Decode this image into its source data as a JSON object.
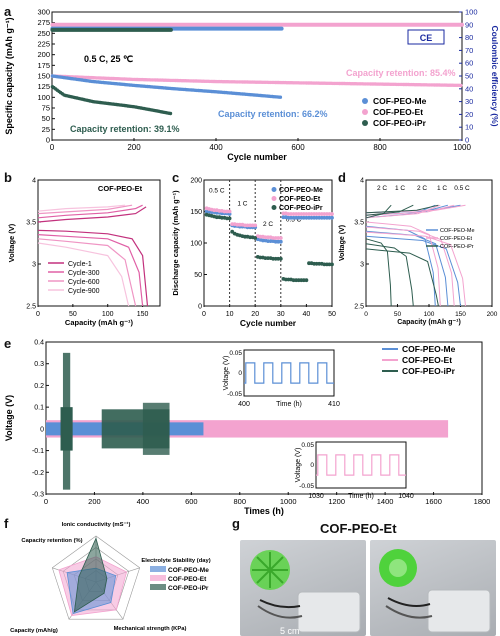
{
  "panel_labels": {
    "a": "a",
    "b": "b",
    "c": "c",
    "d": "d",
    "e": "e",
    "f": "f",
    "g": "g"
  },
  "colors": {
    "me": "#5b8fd6",
    "et": "#f3a3cf",
    "ipr": "#2e5d4f",
    "et_dark": "#c2317d"
  },
  "chart_data": [
    {
      "id": "a",
      "type": "scatter",
      "xlabel": "Cycle number",
      "ylabel": "Specific capacity (mAh g⁻¹)",
      "y2label": "Coulombic efficiency (%)",
      "xlim": [
        0,
        1000
      ],
      "ylim": [
        0,
        300
      ],
      "y2lim": [
        0,
        100
      ],
      "xticks": [
        0,
        200,
        400,
        600,
        800,
        1000
      ],
      "yticks": [
        0,
        25,
        50,
        75,
        100,
        125,
        150,
        175,
        200,
        225,
        250,
        275,
        300
      ],
      "y2ticks": [
        0,
        10,
        20,
        30,
        40,
        50,
        60,
        70,
        80,
        90,
        100
      ],
      "condition": "0.5 C,  25 ℃",
      "ce_tag": "CE",
      "annotations": [
        "Capacity retention: 85.4%",
        "Capacity retention: 66.2%",
        "Capacity retention: 39.1%"
      ],
      "legend_position": "bottom-right",
      "series": [
        {
          "name": "COF-PEO-Me",
          "color_key": "me",
          "capacity": [
            [
              1,
              150
            ],
            [
              100,
              137
            ],
            [
              200,
              128
            ],
            [
              300,
              120
            ],
            [
              400,
              113
            ],
            [
              500,
              105
            ],
            [
              560,
              100
            ]
          ],
          "ce": [
            [
              1,
              87
            ],
            [
              560,
              87
            ]
          ]
        },
        {
          "name": "COF-PEO-Et",
          "color_key": "et",
          "capacity": [
            [
              1,
              150
            ],
            [
              200,
              142
            ],
            [
              400,
              137
            ],
            [
              600,
              134
            ],
            [
              800,
              131
            ],
            [
              1000,
              128
            ]
          ],
          "ce": [
            [
              1,
              90
            ],
            [
              1000,
              90
            ]
          ]
        },
        {
          "name": "COF-PEO-iPr",
          "color_key": "ipr",
          "capacity": [
            [
              1,
              125
            ],
            [
              30,
              105
            ],
            [
              100,
              90
            ],
            [
              200,
              78
            ],
            [
              290,
              62
            ]
          ],
          "ce": [
            [
              1,
              86
            ],
            [
              290,
              86
            ]
          ]
        }
      ]
    },
    {
      "id": "b",
      "type": "line",
      "title": "COF-PEO-Et",
      "xlabel": "Capacity (mAh g⁻¹)",
      "ylabel": "Voltage (V)",
      "xlim": [
        0,
        175
      ],
      "ylim": [
        2.5,
        4.0
      ],
      "xticks": [
        0,
        50,
        100,
        150
      ],
      "yticks": [
        2.5,
        3.0,
        3.5,
        4.0
      ],
      "series": [
        {
          "name": "Cycle-1",
          "color": "#c2317d",
          "charge": [
            [
              0,
              3.5
            ],
            [
              40,
              3.53
            ],
            [
              100,
              3.56
            ],
            [
              140,
              3.6
            ],
            [
              155,
              3.68
            ]
          ],
          "discharge": [
            [
              0,
              3.4
            ],
            [
              40,
              3.39
            ],
            [
              100,
              3.36
            ],
            [
              135,
              3.3
            ],
            [
              150,
              3.1
            ],
            [
              157,
              2.5
            ]
          ]
        },
        {
          "name": "Cycle-300",
          "color": "#e060a6",
          "charge": [
            [
              0,
              3.55
            ],
            [
              40,
              3.58
            ],
            [
              100,
              3.61
            ],
            [
              140,
              3.66
            ],
            [
              150,
              3.7
            ]
          ],
          "discharge": [
            [
              0,
              3.35
            ],
            [
              40,
              3.33
            ],
            [
              100,
              3.3
            ],
            [
              130,
              3.2
            ],
            [
              145,
              2.9
            ],
            [
              150,
              2.5
            ]
          ]
        },
        {
          "name": "Cycle-600",
          "color": "#ef95c4",
          "charge": [
            [
              0,
              3.6
            ],
            [
              40,
              3.62
            ],
            [
              100,
              3.65
            ],
            [
              135,
              3.7
            ]
          ],
          "discharge": [
            [
              0,
              3.3
            ],
            [
              40,
              3.27
            ],
            [
              100,
              3.22
            ],
            [
              125,
              3.05
            ],
            [
              140,
              2.5
            ]
          ]
        },
        {
          "name": "Cycle-900",
          "color": "#f7c3de",
          "charge": [
            [
              0,
              3.63
            ],
            [
              40,
              3.66
            ],
            [
              100,
              3.68
            ],
            [
              125,
              3.7
            ]
          ],
          "discharge": [
            [
              0,
              3.25
            ],
            [
              40,
              3.2
            ],
            [
              100,
              3.1
            ],
            [
              120,
              2.85
            ],
            [
              130,
              2.5
            ]
          ]
        }
      ]
    },
    {
      "id": "c",
      "type": "scatter",
      "xlabel": "Cycle number",
      "ylabel": "Discharge capacity (mAh g⁻¹)",
      "xlim": [
        0,
        50
      ],
      "ylim": [
        0,
        200
      ],
      "xticks": [
        0,
        10,
        20,
        30,
        40,
        50
      ],
      "yticks": [
        0,
        50,
        100,
        150,
        200
      ],
      "rate_labels": [
        "0.5 C",
        "1 C",
        "2 C",
        "0.5 C"
      ],
      "series": [
        {
          "name": "COF-PEO-Me",
          "color_key": "me",
          "values": [
            150,
            150,
            149,
            149,
            148,
            148,
            147,
            147,
            147,
            146,
            128,
            127,
            127,
            126,
            126,
            126,
            125,
            125,
            125,
            125,
            106,
            105,
            104,
            104,
            103,
            103,
            103,
            102,
            102,
            102,
            141,
            141,
            140,
            140,
            140,
            140,
            140,
            140,
            140,
            140,
            140,
            140,
            140,
            140,
            140,
            140,
            140,
            140,
            140,
            140
          ]
        },
        {
          "name": "COF-PEO-Et",
          "color_key": "et",
          "values": [
            155,
            154,
            153,
            152,
            152,
            151,
            151,
            150,
            150,
            150,
            130,
            130,
            129,
            129,
            129,
            128,
            128,
            128,
            128,
            128,
            111,
            110,
            110,
            109,
            109,
            109,
            108,
            108,
            108,
            108,
            147,
            147,
            146,
            146,
            146,
            146,
            146,
            146,
            146,
            146,
            146,
            146,
            146,
            146,
            146,
            146,
            146,
            146,
            146,
            146
          ]
        },
        {
          "name": "COF-PEO-iPr",
          "color_key": "ipr",
          "values": [
            145,
            144,
            143,
            142,
            141,
            141,
            140,
            140,
            139,
            139,
            118,
            115,
            113,
            112,
            111,
            110,
            110,
            109,
            109,
            108,
            78,
            77,
            77,
            76,
            76,
            76,
            75,
            75,
            75,
            75,
            43,
            42,
            42,
            42,
            41,
            41,
            41,
            41,
            41,
            41,
            68,
            68,
            67,
            67,
            67,
            67,
            66,
            66,
            66,
            66
          ]
        }
      ]
    },
    {
      "id": "d",
      "type": "line",
      "xlabel": "Capacity (mAh g⁻¹)",
      "ylabel": "Voltage (V)",
      "xlim": [
        0,
        200
      ],
      "ylim": [
        2.5,
        4.0
      ],
      "xticks": [
        0,
        50,
        100,
        150,
        200
      ],
      "yticks": [
        2.5,
        3.0,
        3.5,
        4.0
      ],
      "rate_labels": [
        "2 C",
        "1 C",
        "2 C",
        "1 C",
        "0.5 C"
      ],
      "series": [
        {
          "name": "COF-PEO-Me",
          "color_key": "me"
        },
        {
          "name": "COF-PEO-Et",
          "color_key": "et"
        },
        {
          "name": "COF-PEO-iPr",
          "color_key": "ipr"
        }
      ]
    },
    {
      "id": "e",
      "type": "area",
      "xlabel": "Times (h)",
      "ylabel": "Voltage (V)",
      "xlim": [
        0,
        1800
      ],
      "ylim": [
        -0.3,
        0.4
      ],
      "xticks": [
        0,
        200,
        400,
        600,
        800,
        1000,
        1200,
        1400,
        1600,
        1800
      ],
      "yticks": [
        -0.3,
        -0.2,
        -0.1,
        0.0,
        0.1,
        0.2,
        0.3,
        0.4
      ],
      "series": [
        {
          "name": "COF-PEO-Me",
          "color_key": "me",
          "end_time": 650
        },
        {
          "name": "COF-PEO-Et",
          "color_key": "et",
          "end_time": 1660
        },
        {
          "name": "COF-PEO-iPr",
          "color_key": "ipr",
          "end_time": 510
        }
      ],
      "inset1": {
        "ylabel": "Voltage (V)",
        "xlabel": "Time (h)",
        "xticks": [
          "400",
          "410"
        ],
        "yticks": [
          "0.05",
          "0",
          "-0.05"
        ]
      },
      "inset2": {
        "ylabel": "Voltage (V)",
        "xlabel": "Time (h)",
        "xticks": [
          "1030",
          "1040"
        ],
        "yticks": [
          "0.05",
          "0",
          "-0.05"
        ]
      }
    },
    {
      "id": "f",
      "type": "radar",
      "axes": [
        "Ionic conductivity (mS⁻¹)",
        "Electrolyte Stability (day)",
        "Mechanical strength (KPa)",
        "Capacity (mAh/g)",
        "Capacity retention (%)"
      ],
      "series": [
        {
          "name": "COF-PEO-Me",
          "color_key": "me",
          "values": [
            0.3,
            0.45,
            0.55,
            0.85,
            0.66
          ]
        },
        {
          "name": "COF-PEO-Et",
          "color_key": "et",
          "values": [
            0.55,
            0.7,
            0.75,
            0.9,
            0.85
          ]
        },
        {
          "name": "COF-PEO-iPr",
          "color_key": "ipr",
          "values": [
            0.95,
            0.25,
            0.3,
            0.8,
            0.39
          ]
        }
      ]
    }
  ],
  "photo": {
    "title": "COF-PEO-Et",
    "scale": "5 cm"
  }
}
